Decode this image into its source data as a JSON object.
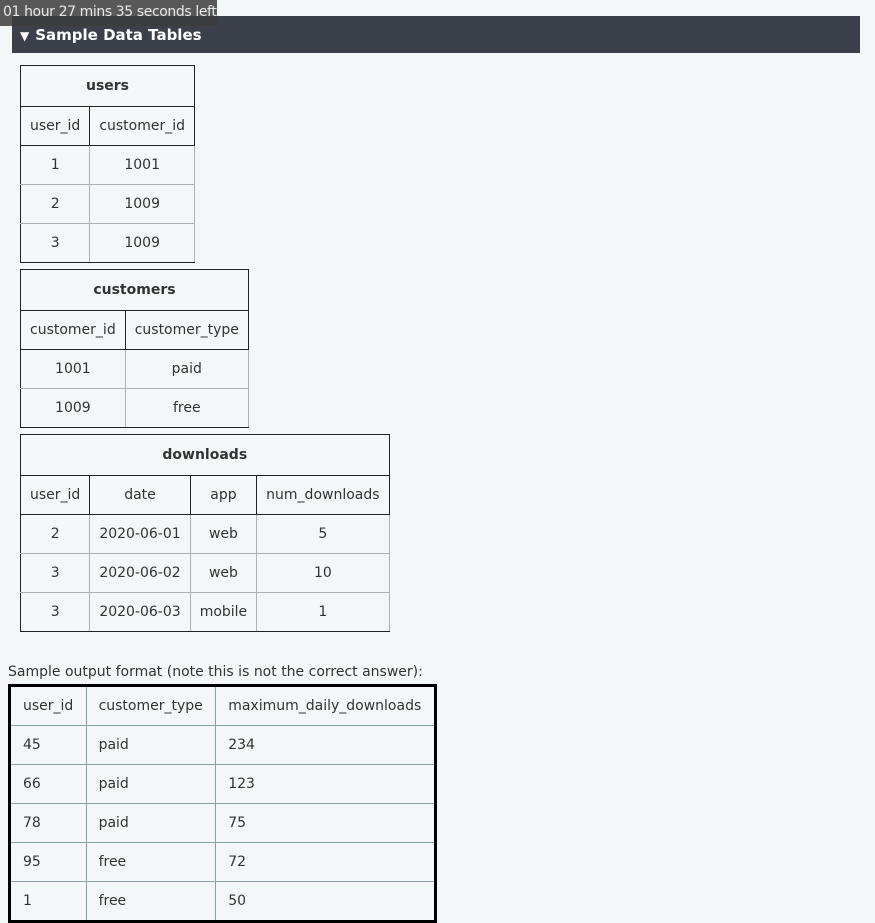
{
  "timer": {
    "text": "01 hour 27 mins 35 seconds left"
  },
  "section": {
    "title": "Sample Data Tables",
    "icon": "triangle-down-icon",
    "icon_glyph": "▼"
  },
  "tables": [
    {
      "caption": "users",
      "columns": [
        "user_id",
        "customer_id"
      ],
      "rows": [
        [
          "1",
          "1001"
        ],
        [
          "2",
          "1009"
        ],
        [
          "3",
          "1009"
        ]
      ]
    },
    {
      "caption": "customers",
      "columns": [
        "customer_id",
        "customer_type"
      ],
      "rows": [
        [
          "1001",
          "paid"
        ],
        [
          "1009",
          "free"
        ]
      ]
    },
    {
      "caption": "downloads",
      "columns": [
        "user_id",
        "date",
        "app",
        "num_downloads"
      ],
      "rows": [
        [
          "2",
          "2020-06-01",
          "web",
          "5"
        ],
        [
          "3",
          "2020-06-02",
          "web",
          "10"
        ],
        [
          "3",
          "2020-06-03",
          "mobile",
          "1"
        ]
      ]
    }
  ],
  "output": {
    "label": "Sample output format (note this is not the correct answer):",
    "columns": [
      "user_id",
      "customer_type",
      "maximum_daily_downloads"
    ],
    "rows": [
      [
        "45",
        "paid",
        "234"
      ],
      [
        "66",
        "paid",
        "123"
      ],
      [
        "78",
        "paid",
        "75"
      ],
      [
        "95",
        "free",
        "72"
      ],
      [
        "1",
        "free",
        "50"
      ]
    ]
  }
}
